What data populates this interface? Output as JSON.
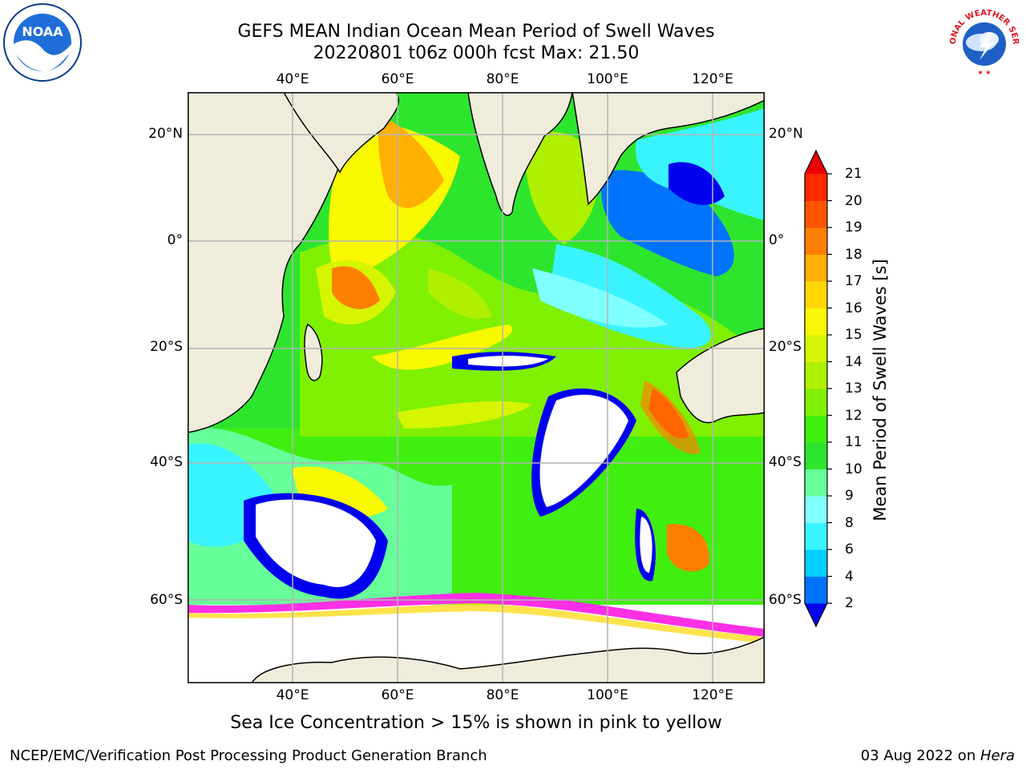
{
  "title": {
    "line1": "GEFS MEAN Indian Ocean Mean Period of Swell Waves",
    "line2": "20220801 t06z 000h fcst   Max: 21.50"
  },
  "map": {
    "region": "Indian Ocean",
    "lon_range": [
      20,
      130
    ],
    "lat_range": [
      -72,
      28
    ],
    "lon_ticks": [
      "40°E",
      "60°E",
      "80°E",
      "100°E",
      "120°E"
    ],
    "lat_ticks": [
      "20°N",
      "0°",
      "20°S",
      "40°S",
      "60°S"
    ],
    "colors": {
      "land": "#efecdc",
      "grid": "#b4b4b4",
      "ice": "#ff2fe6"
    }
  },
  "colorbar": {
    "label": "Mean Period of Swell Waves [s]",
    "ticks": [
      "21",
      "20",
      "19",
      "18",
      "17",
      "16",
      "15",
      "14",
      "13",
      "12",
      "11",
      "10",
      "9",
      "8",
      "6",
      "4",
      "2"
    ],
    "colors": [
      "#0000ee",
      "#0074ff",
      "#00cfff",
      "#39f4ff",
      "#80ffff",
      "#66ff99",
      "#2ee52e",
      "#40ee10",
      "#7ff000",
      "#aef000",
      "#d5f500",
      "#f8f800",
      "#ffd700",
      "#ffb000",
      "#ff8000",
      "#ff5500",
      "#ff2800",
      "#ee0000"
    ]
  },
  "note": "Sea Ice Concentration > 15% is shown in pink to yellow",
  "footer": {
    "left": "NCEP/EMC/Verification Post Processing Product Generation Branch",
    "date": "03 Aug 2022 on ",
    "host": "Hera"
  },
  "logos": {
    "noaa": "NOAA",
    "nws": "NATIONAL WEATHER SERVICE"
  }
}
